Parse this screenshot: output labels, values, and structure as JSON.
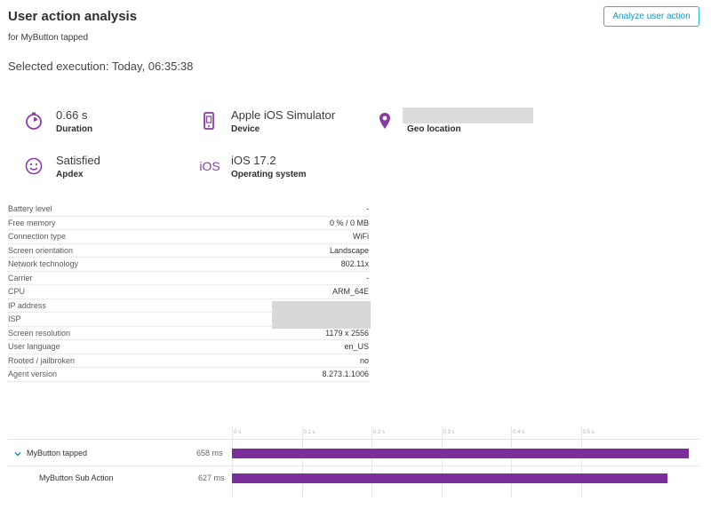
{
  "header": {
    "title": "User action analysis",
    "subtitle": "for MyButton tapped",
    "analyze_button": "Analyze user action",
    "selected_execution": "Selected execution: Today, 06:35:38"
  },
  "kpis": {
    "duration": {
      "value": "0.66 s",
      "label": "Duration",
      "icon": "stopwatch-icon"
    },
    "device": {
      "value": "Apple iOS Simulator",
      "label": "Device",
      "icon": "mobile-device-icon"
    },
    "geo": {
      "value": "",
      "label": "Geo location",
      "icon": "location-pin-icon"
    },
    "apdex": {
      "value": "Satisfied",
      "label": "Apdex",
      "icon": "smiley-icon"
    },
    "os": {
      "value": "iOS 17.2",
      "label": "Operating system",
      "icon_text": "iOS"
    }
  },
  "properties": [
    {
      "key": "Battery level",
      "value": "-"
    },
    {
      "key": "Free memory",
      "value": "0 % / 0 MB"
    },
    {
      "key": "Connection type",
      "value": "WiFi"
    },
    {
      "key": "Screen orientation",
      "value": "Landscape"
    },
    {
      "key": "Network technology",
      "value": "802.11x"
    },
    {
      "key": "Carrier",
      "value": "-"
    },
    {
      "key": "CPU",
      "value": "ARM_64E"
    },
    {
      "key": "IP address",
      "value": ""
    },
    {
      "key": "ISP",
      "value": ""
    },
    {
      "key": "Screen resolution",
      "value": "1179 x 2556"
    },
    {
      "key": "User language",
      "value": "en_US"
    },
    {
      "key": "Rooted / jailbroken",
      "value": "no"
    },
    {
      "key": "Agent version",
      "value": "8.273.1.1006"
    }
  ],
  "timeline": {
    "ticks": [
      "0 s",
      "0.1 s",
      "0.2 s",
      "0.3 s",
      "0.4 s",
      "0.5 s"
    ],
    "axis_max_ms": 660,
    "rows": [
      {
        "name": "MyButton tapped",
        "duration": "658 ms",
        "duration_ms": 658,
        "expanded": true
      },
      {
        "name": "MyButton Sub Action",
        "duration": "627 ms",
        "duration_ms": 627
      }
    ]
  },
  "colors": {
    "accent": "#7b2d9a",
    "link": "#1497b8",
    "icon": "#8a3ba8"
  }
}
